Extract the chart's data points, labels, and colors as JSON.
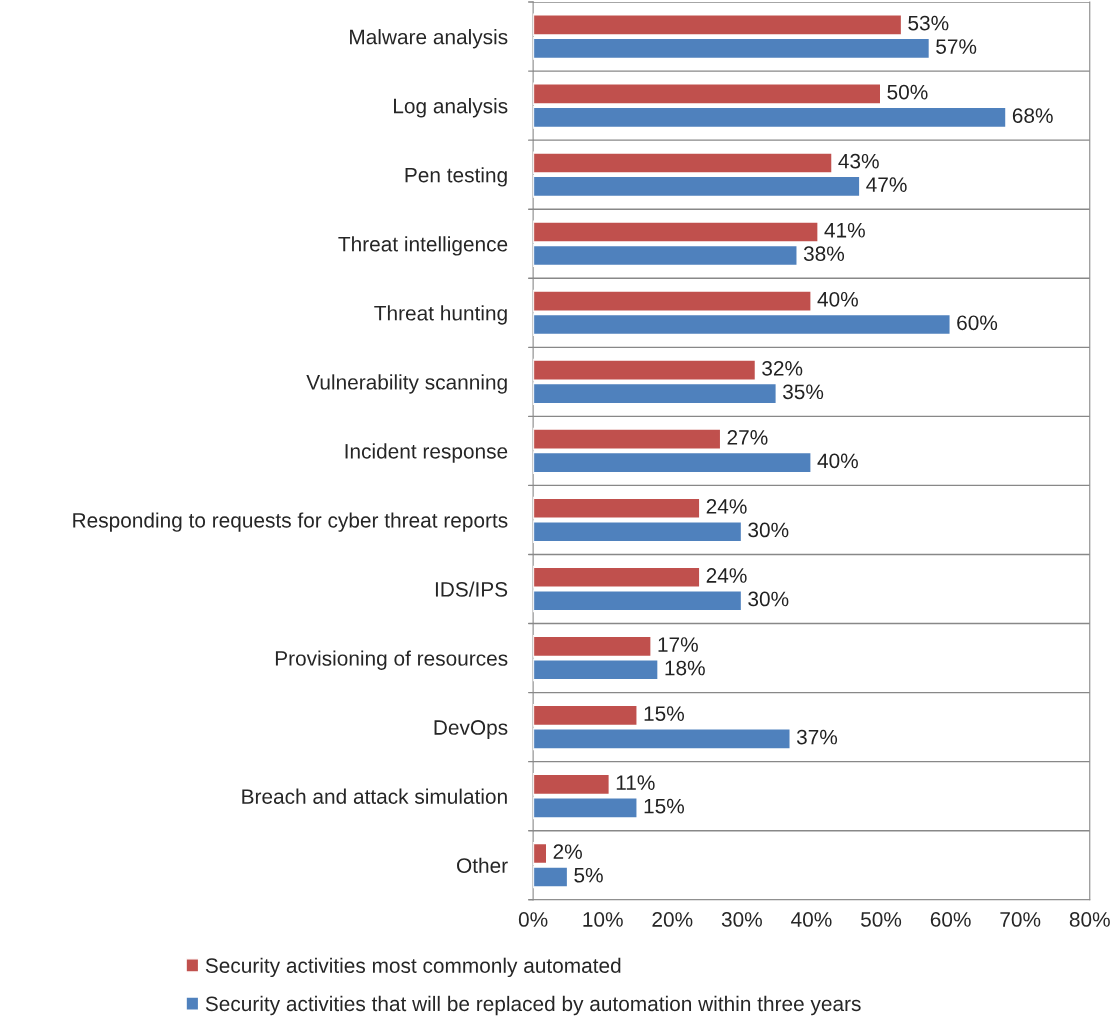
{
  "chart_data": {
    "type": "bar",
    "orientation": "horizontal",
    "categories": [
      "Malware analysis",
      "Log analysis",
      "Pen testing",
      "Threat intelligence",
      "Threat hunting",
      "Vulnerability scanning",
      "Incident response",
      "Responding to requests for cyber threat reports",
      "IDS/IPS",
      "Provisioning of resources",
      "DevOps",
      "Breach and attack simulation",
      "Other"
    ],
    "series": [
      {
        "name": "Security activities most commonly automated",
        "color": "#c0504d",
        "values": [
          53,
          50,
          43,
          41,
          40,
          32,
          27,
          24,
          24,
          17,
          15,
          11,
          2
        ],
        "value_labels": [
          "53%",
          "50%",
          "43%",
          "41%",
          "40%",
          "32%",
          "27%",
          "24%",
          "24%",
          "17%",
          "15%",
          "11%",
          "2%"
        ]
      },
      {
        "name": "Security activities that will be replaced by automation within three years",
        "color": "#4f81bd",
        "values": [
          57,
          68,
          47,
          38,
          60,
          35,
          40,
          30,
          30,
          18,
          37,
          15,
          5
        ],
        "value_labels": [
          "57%",
          "68%",
          "47%",
          "38%",
          "60%",
          "35%",
          "40%",
          "30%",
          "30%",
          "18%",
          "37%",
          "15%",
          "5%"
        ]
      }
    ],
    "xlim": [
      0,
      80
    ],
    "xticks": [
      {
        "value": 0,
        "label": "0%"
      },
      {
        "value": 10,
        "label": "10%"
      },
      {
        "value": 20,
        "label": "20%"
      },
      {
        "value": 30,
        "label": "30%"
      },
      {
        "value": 40,
        "label": "40%"
      },
      {
        "value": 50,
        "label": "50%"
      },
      {
        "value": 60,
        "label": "60%"
      },
      {
        "value": 70,
        "label": "70%"
      },
      {
        "value": 80,
        "label": "80%"
      }
    ],
    "grid": "y",
    "legend": "bottom"
  }
}
